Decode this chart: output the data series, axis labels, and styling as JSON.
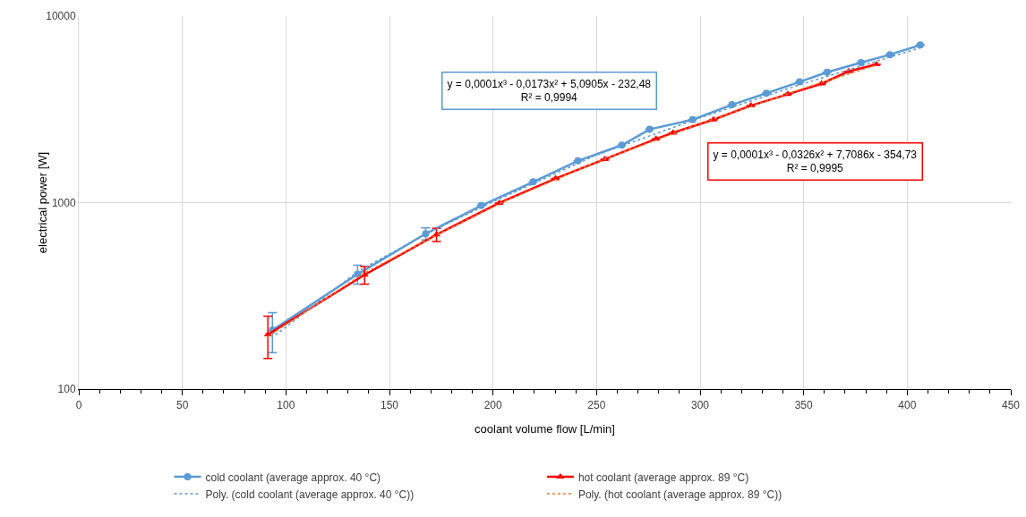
{
  "chart_data": {
    "type": "line",
    "xlabel": "coolant volume flow [L/min]",
    "ylabel": "electrical power [W]",
    "log": "y",
    "grid": true,
    "legend": "bottom",
    "line_style": "solid",
    "xlim": [
      0,
      450
    ],
    "xticks": [
      0,
      50,
      100,
      150,
      200,
      250,
      300,
      350,
      400,
      450
    ],
    "ylim": [
      100,
      10000
    ],
    "yticks": [
      100,
      1000,
      10000
    ],
    "series": [
      {
        "name": "cold coolant (average approx. 40 °C)",
        "color": "#5b9bd5",
        "marker": "circle",
        "x": [
          93.5,
          134.6,
          167.5,
          194.3,
          219.4,
          241,
          262.2,
          275.6,
          296.4,
          315.4,
          332,
          348,
          361.3,
          377.7,
          391.6,
          406.3
        ],
        "values": [
          207,
          413,
          681,
          964,
          1291,
          1674,
          2033,
          2470,
          2785,
          3349,
          3855,
          4436,
          5000,
          5630,
          6210,
          6995
        ],
        "errors": [
          50,
          48,
          50,
          null,
          null,
          null,
          null,
          null,
          null,
          null,
          null,
          null,
          null,
          null,
          null,
          null
        ]
      },
      {
        "name": "hot coolant (average approx. 89 °C)",
        "color": "#ff0000",
        "marker": "triangle",
        "x": [
          91.3,
          138,
          172.7,
          203,
          230.2,
          254,
          278.7,
          286.9,
          306.4,
          324.5,
          342.3,
          358.7,
          371.7,
          385.1
        ],
        "values": [
          196,
          410,
          673,
          995,
          1346,
          1710,
          2195,
          2368,
          2785,
          3311,
          3811,
          4345,
          5055,
          5510
        ],
        "errors": [
          50,
          45,
          55,
          null,
          null,
          null,
          null,
          null,
          null,
          null,
          null,
          null,
          null,
          null
        ]
      },
      {
        "name": "Poly. (cold coolant (average approx. 40 °C))",
        "color": "#5b9bd5",
        "marker": "none",
        "line_style": "dotted",
        "x": [
          95,
          135,
          170,
          200,
          250,
          300,
          350,
          407
        ],
        "values": [
          195,
          430,
          700,
          1010,
          1800,
          2850,
          4350,
          6800
        ]
      },
      {
        "name": "Poly. (hot coolant (average approx. 89 °C))",
        "color": "#ed7d31",
        "marker": "none",
        "line_style": "dotted",
        "x": [
          91,
          138,
          175,
          205,
          250,
          300,
          350,
          385
        ],
        "values": [
          190,
          420,
          690,
          1010,
          1650,
          2650,
          4100,
          5450
        ]
      }
    ],
    "annotations": [
      "y = 0,0001x³ - 0,0173x² + 5,0905x - 232,48\nR² = 0,9994",
      "y = 0,0001x³ - 0,0326x² + 7,7086x - 354,73\nR² = 0,9995"
    ]
  }
}
